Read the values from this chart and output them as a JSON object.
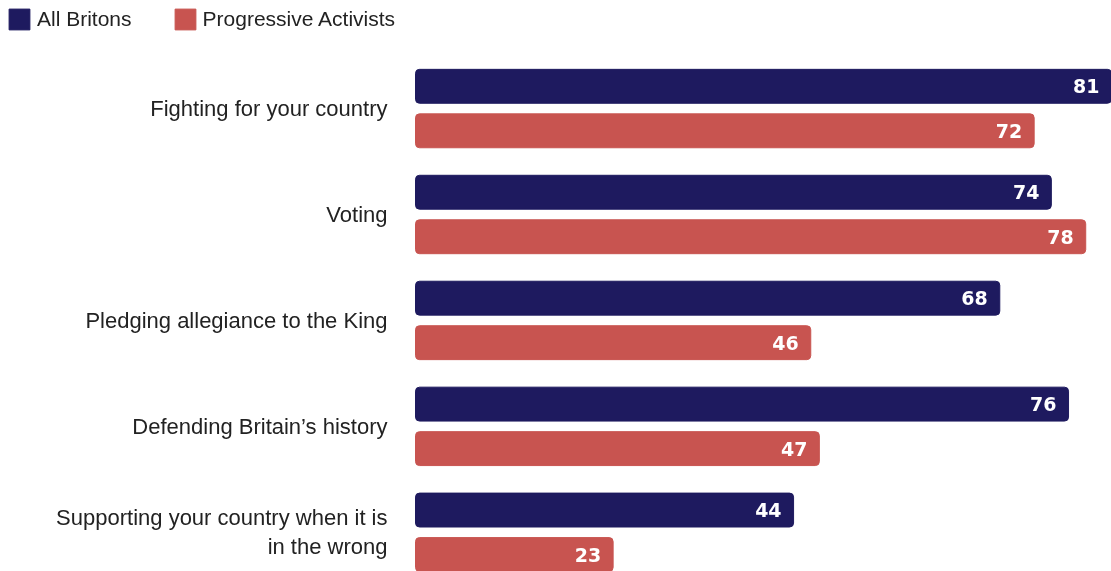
{
  "chart_data": {
    "type": "bar",
    "orientation": "horizontal",
    "categories": [
      "Fighting for your country",
      "Voting",
      "Pledging allegiance to the King",
      "Defending Britain’s history",
      "Supporting your country when it is in the wrong"
    ],
    "series": [
      {
        "name": "All Britons",
        "color": "#1e1a5f",
        "values": [
          81,
          74,
          68,
          76,
          44
        ]
      },
      {
        "name": "Progressive Activists",
        "color": "#c85450",
        "values": [
          72,
          78,
          46,
          47,
          23
        ]
      }
    ],
    "data_labels": true,
    "legend": "top left",
    "tick_labels": "y",
    "grid": false
  }
}
